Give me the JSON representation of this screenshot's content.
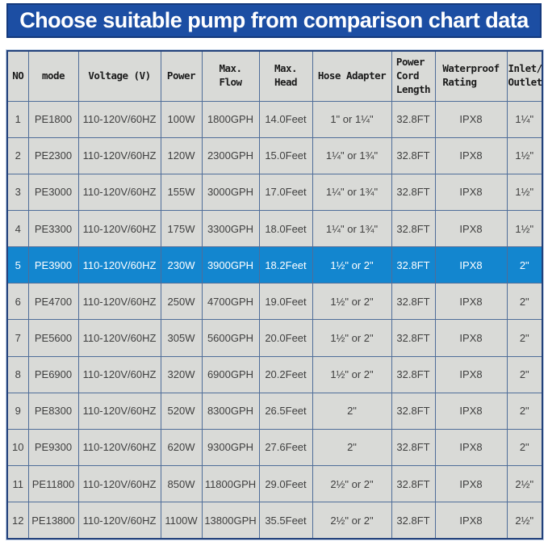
{
  "banner": {
    "title": "Choose suitable pump from comparison chart data",
    "bg_color": "#1c4ea3",
    "border_color": "#14397c",
    "text_color": "#ffffff"
  },
  "table": {
    "cell_bg": "#d9dad7",
    "grid_color": "#4f6d99",
    "outer_border_color": "#22417b",
    "highlight_bg": "#1386cf",
    "highlight_text_color": "#ffffff",
    "body_text_color": "#3f3f3f",
    "header_text_color": "#1a1a1a",
    "columns": [
      {
        "key": "no",
        "label": "NO"
      },
      {
        "key": "mode",
        "label": "mode"
      },
      {
        "key": "voltage",
        "label": "Voltage (V)"
      },
      {
        "key": "power",
        "label": "Power"
      },
      {
        "key": "flow",
        "label": "Max.\nFlow"
      },
      {
        "key": "head",
        "label": "Max.\nHead"
      },
      {
        "key": "adapter",
        "label": "Hose Adapter"
      },
      {
        "key": "cord",
        "label": "Power\nCord\nLength"
      },
      {
        "key": "waterproof",
        "label": "Waterproof\nRating"
      },
      {
        "key": "inlet",
        "label": "Inlet/\nOutlet"
      }
    ],
    "rows": [
      {
        "no": "1",
        "mode": "PE1800",
        "voltage": "110-120V/60HZ",
        "power": "100W",
        "flow": "1800GPH",
        "head": "14.0Feet",
        "adapter": "1\" or 1¼\"",
        "cord": "32.8FT",
        "waterproof": "IPX8",
        "inlet": "1¼\"",
        "highlighted": false
      },
      {
        "no": "2",
        "mode": "PE2300",
        "voltage": "110-120V/60HZ",
        "power": "120W",
        "flow": "2300GPH",
        "head": "15.0Feet",
        "adapter": "1¼\" or 1¾\"",
        "cord": "32.8FT",
        "waterproof": "IPX8",
        "inlet": "1½\"",
        "highlighted": false
      },
      {
        "no": "3",
        "mode": "PE3000",
        "voltage": "110-120V/60HZ",
        "power": "155W",
        "flow": "3000GPH",
        "head": "17.0Feet",
        "adapter": "1¼\" or 1¾\"",
        "cord": "32.8FT",
        "waterproof": "IPX8",
        "inlet": "1½\"",
        "highlighted": false
      },
      {
        "no": "4",
        "mode": "PE3300",
        "voltage": "110-120V/60HZ",
        "power": "175W",
        "flow": "3300GPH",
        "head": "18.0Feet",
        "adapter": "1¼\" or 1¾\"",
        "cord": "32.8FT",
        "waterproof": "IPX8",
        "inlet": "1½\"",
        "highlighted": false
      },
      {
        "no": "5",
        "mode": "PE3900",
        "voltage": "110-120V/60HZ",
        "power": "230W",
        "flow": "3900GPH",
        "head": "18.2Feet",
        "adapter": "1½\" or 2\"",
        "cord": "32.8FT",
        "waterproof": "IPX8",
        "inlet": "2\"",
        "highlighted": true
      },
      {
        "no": "6",
        "mode": "PE4700",
        "voltage": "110-120V/60HZ",
        "power": "250W",
        "flow": "4700GPH",
        "head": "19.0Feet",
        "adapter": "1½\" or 2\"",
        "cord": "32.8FT",
        "waterproof": "IPX8",
        "inlet": "2\"",
        "highlighted": false
      },
      {
        "no": "7",
        "mode": "PE5600",
        "voltage": "110-120V/60HZ",
        "power": "305W",
        "flow": "5600GPH",
        "head": "20.0Feet",
        "adapter": "1½\" or 2\"",
        "cord": "32.8FT",
        "waterproof": "IPX8",
        "inlet": "2\"",
        "highlighted": false
      },
      {
        "no": "8",
        "mode": "PE6900",
        "voltage": "110-120V/60HZ",
        "power": "320W",
        "flow": "6900GPH",
        "head": "20.2Feet",
        "adapter": "1½\" or 2\"",
        "cord": "32.8FT",
        "waterproof": "IPX8",
        "inlet": "2\"",
        "highlighted": false
      },
      {
        "no": "9",
        "mode": "PE8300",
        "voltage": "110-120V/60HZ",
        "power": "520W",
        "flow": "8300GPH",
        "head": "26.5Feet",
        "adapter": "2\"",
        "cord": "32.8FT",
        "waterproof": "IPX8",
        "inlet": "2\"",
        "highlighted": false
      },
      {
        "no": "10",
        "mode": "PE9300",
        "voltage": "110-120V/60HZ",
        "power": "620W",
        "flow": "9300GPH",
        "head": "27.6Feet",
        "adapter": "2\"",
        "cord": "32.8FT",
        "waterproof": "IPX8",
        "inlet": "2\"",
        "highlighted": false
      },
      {
        "no": "11",
        "mode": "PE11800",
        "voltage": "110-120V/60HZ",
        "power": "850W",
        "flow": "11800GPH",
        "head": "29.0Feet",
        "adapter": "2½\" or 2\"",
        "cord": "32.8FT",
        "waterproof": "IPX8",
        "inlet": "2½\"",
        "highlighted": false
      },
      {
        "no": "12",
        "mode": "PE13800",
        "voltage": "110-120V/60HZ",
        "power": "1100W",
        "flow": "13800GPH",
        "head": "35.5Feet",
        "adapter": "2½\" or 2\"",
        "cord": "32.8FT",
        "waterproof": "IPX8",
        "inlet": "2½\"",
        "highlighted": false
      }
    ]
  },
  "chart_data": {
    "type": "table",
    "title": "Choose suitable pump from comparison chart data",
    "columns": [
      "NO",
      "mode",
      "Voltage (V)",
      "Power",
      "Max. Flow",
      "Max. Head",
      "Hose Adapter",
      "Power Cord Length",
      "Waterproof Rating",
      "Inlet/Outlet"
    ],
    "rows": [
      [
        "1",
        "PE1800",
        "110-120V/60HZ",
        "100W",
        "1800GPH",
        "14.0Feet",
        "1\" or 1¼\"",
        "32.8FT",
        "IPX8",
        "1¼\""
      ],
      [
        "2",
        "PE2300",
        "110-120V/60HZ",
        "120W",
        "2300GPH",
        "15.0Feet",
        "1¼\" or 1¾\"",
        "32.8FT",
        "IPX8",
        "1½\""
      ],
      [
        "3",
        "PE3000",
        "110-120V/60HZ",
        "155W",
        "3000GPH",
        "17.0Feet",
        "1¼\" or 1¾\"",
        "32.8FT",
        "IPX8",
        "1½\""
      ],
      [
        "4",
        "PE3300",
        "110-120V/60HZ",
        "175W",
        "3300GPH",
        "18.0Feet",
        "1¼\" or 1¾\"",
        "32.8FT",
        "IPX8",
        "1½\""
      ],
      [
        "5",
        "PE3900",
        "110-120V/60HZ",
        "230W",
        "3900GPH",
        "18.2Feet",
        "1½\" or 2\"",
        "32.8FT",
        "IPX8",
        "2\""
      ],
      [
        "6",
        "PE4700",
        "110-120V/60HZ",
        "250W",
        "4700GPH",
        "19.0Feet",
        "1½\" or 2\"",
        "32.8FT",
        "IPX8",
        "2\""
      ],
      [
        "7",
        "PE5600",
        "110-120V/60HZ",
        "305W",
        "5600GPH",
        "20.0Feet",
        "1½\" or 2\"",
        "32.8FT",
        "IPX8",
        "2\""
      ],
      [
        "8",
        "PE6900",
        "110-120V/60HZ",
        "320W",
        "6900GPH",
        "20.2Feet",
        "1½\" or 2\"",
        "32.8FT",
        "IPX8",
        "2\""
      ],
      [
        "9",
        "PE8300",
        "110-120V/60HZ",
        "520W",
        "8300GPH",
        "26.5Feet",
        "2\"",
        "32.8FT",
        "IPX8",
        "2\""
      ],
      [
        "10",
        "PE9300",
        "110-120V/60HZ",
        "620W",
        "9300GPH",
        "27.6Feet",
        "2\"",
        "32.8FT",
        "IPX8",
        "2\""
      ],
      [
        "11",
        "PE11800",
        "110-120V/60HZ",
        "850W",
        "11800GPH",
        "29.0Feet",
        "2½\" or 2\"",
        "32.8FT",
        "IPX8",
        "2½\""
      ],
      [
        "12",
        "PE13800",
        "110-120V/60HZ",
        "1100W",
        "13800GPH",
        "35.5Feet",
        "2½\" or 2\"",
        "32.8FT",
        "IPX8",
        "2½\""
      ]
    ],
    "highlighted_row": "PE3900",
    "layout": {
      "grid": true,
      "header_row": true,
      "legend_position": "none"
    }
  }
}
